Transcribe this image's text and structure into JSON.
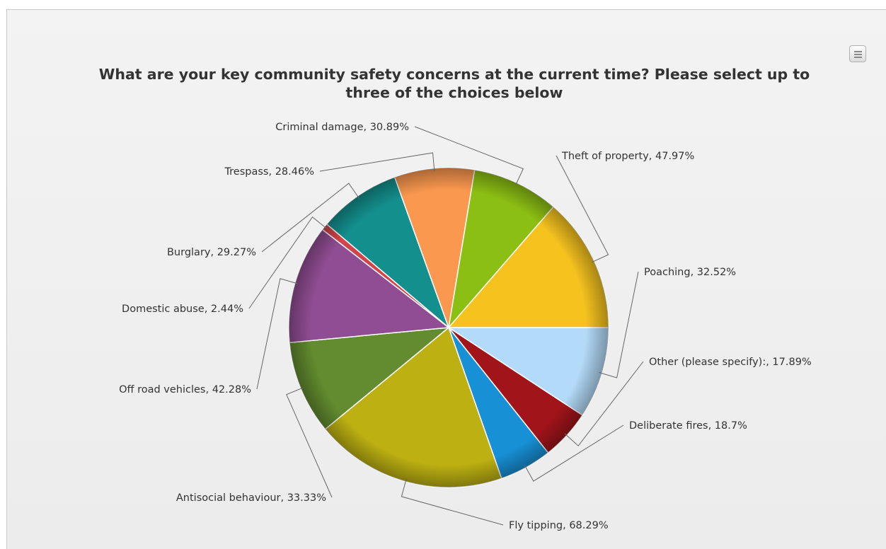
{
  "chart_data": {
    "type": "pie",
    "title_lines": [
      "What are your key community safety concerns at the current time? Please select up to",
      "three of the choices below"
    ],
    "slices": [
      {
        "label": "Poaching, 32.52%",
        "value": 32.52,
        "color": "#b3daf8"
      },
      {
        "label": "Other (please specify):, 17.89%",
        "value": 17.89,
        "color": "#a0141a"
      },
      {
        "label": "Deliberate fires, 18.7%",
        "value": 18.7,
        "color": "#1790d6"
      },
      {
        "label": "Fly tipping, 68.29%",
        "value": 68.29,
        "color": "#bcb012"
      },
      {
        "label": "Antisocial behaviour, 33.33%",
        "value": 33.33,
        "color": "#628c2f"
      },
      {
        "label": "Off road vehicles, 42.28%",
        "value": 42.28,
        "color": "#914d93"
      },
      {
        "label": "Domestic abuse, 2.44%",
        "value": 2.44,
        "color": "#d3444a"
      },
      {
        "label": "Burglary, 29.27%",
        "value": 29.27,
        "color": "#138f8d"
      },
      {
        "label": "Trespass, 28.46%",
        "value": 28.46,
        "color": "#fb984f"
      },
      {
        "label": "Criminal damage, 30.89%",
        "value": 30.89,
        "color": "#8cbf13"
      },
      {
        "label": "Theft of property, 47.97%",
        "value": 47.97,
        "color": "#f5c21e"
      }
    ],
    "start": "3 o'clock",
    "direction": "clockwise",
    "legend": "none"
  },
  "export_icon": "menu-lines-icon"
}
